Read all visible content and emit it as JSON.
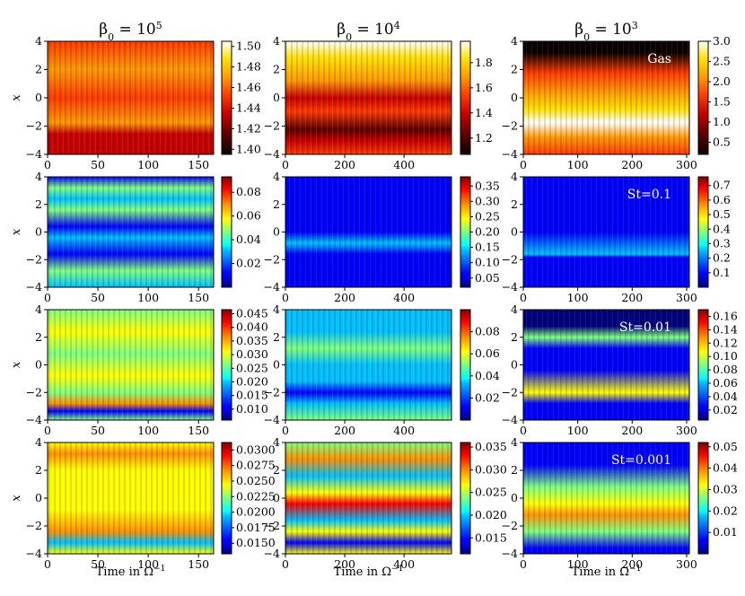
{
  "chart_data": {
    "type": "heatmap",
    "description_rows": [
      "Gas",
      "St=0.1",
      "St=0.01",
      "St=0.001"
    ],
    "columns": [
      {
        "title_base": "β",
        "title_sub": "0",
        "title_rest": " = 10",
        "title_sup": "5",
        "xlim": [
          0,
          165
        ],
        "xticks": [
          0,
          50,
          100,
          150
        ]
      },
      {
        "title_base": "β",
        "title_sub": "0",
        "title_rest": " = 10",
        "title_sup": "4",
        "xlim": [
          0,
          560
        ],
        "xticks": [
          0,
          200,
          400
        ]
      },
      {
        "title_base": "β",
        "title_sub": "0",
        "title_rest": " = 10",
        "title_sup": "3",
        "xlim": [
          0,
          305
        ],
        "xticks": [
          0,
          100,
          200,
          300
        ]
      }
    ],
    "ylim": [
      -4,
      4
    ],
    "yticks": [
      -4,
      -2,
      0,
      2,
      4
    ],
    "ylabel": "x",
    "xlabel_base": "Time in Ω",
    "xlabel_sup": "−1",
    "panels": [
      [
        {
          "cmap": "hot",
          "clim": [
            1.395,
            1.505
          ],
          "ticks": [
            "1.40",
            "1.42",
            "1.44",
            "1.46",
            "1.48",
            "1.50"
          ],
          "annotation": ""
        },
        {
          "cmap": "hot",
          "clim": [
            1.07,
            1.97
          ],
          "ticks": [
            "1.2",
            "1.4",
            "1.6",
            "1.8"
          ],
          "annotation": ""
        },
        {
          "cmap": "hot",
          "clim": [
            0.2,
            3.0
          ],
          "ticks": [
            "0.5",
            "1.0",
            "1.5",
            "2.0",
            "2.5",
            "3.0"
          ],
          "annotation": "Gas"
        }
      ],
      [
        {
          "cmap": "jet",
          "clim": [
            0.0,
            0.093
          ],
          "ticks": [
            "0.02",
            "0.04",
            "0.06",
            "0.08"
          ],
          "annotation": ""
        },
        {
          "cmap": "jet",
          "clim": [
            0.02,
            0.38
          ],
          "ticks": [
            "0.05",
            "0.10",
            "0.15",
            "0.20",
            "0.25",
            "0.30",
            "0.35"
          ],
          "annotation": ""
        },
        {
          "cmap": "jet",
          "clim": [
            0.0,
            0.76
          ],
          "ticks": [
            "0.1",
            "0.2",
            "0.3",
            "0.4",
            "0.5",
            "0.6",
            "0.7"
          ],
          "annotation": "St=0.1"
        }
      ],
      [
        {
          "cmap": "jet",
          "clim": [
            0.006,
            0.0465
          ],
          "ticks": [
            "0.010",
            "0.015",
            "0.020",
            "0.025",
            "0.030",
            "0.035",
            "0.040",
            "0.045"
          ],
          "annotation": ""
        },
        {
          "cmap": "jet",
          "clim": [
            0.0,
            0.1
          ],
          "ticks": [
            "0.02",
            "0.04",
            "0.06",
            "0.08"
          ],
          "annotation": ""
        },
        {
          "cmap": "jet",
          "clim": [
            0.005,
            0.17
          ],
          "ticks": [
            "0.02",
            "0.04",
            "0.06",
            "0.08",
            "0.10",
            "0.12",
            "0.14",
            "0.16"
          ],
          "annotation": "St=0.01"
        }
      ],
      [
        {
          "cmap": "jet",
          "clim": [
            0.0133,
            0.0312
          ],
          "ticks": [
            "0.0150",
            "0.0175",
            "0.0200",
            "0.0225",
            "0.0250",
            "0.0275",
            "0.0300"
          ],
          "annotation": ""
        },
        {
          "cmap": "jet",
          "clim": [
            0.0115,
            0.036
          ],
          "ticks": [
            "0.015",
            "0.020",
            "0.025",
            "0.030",
            "0.035"
          ],
          "annotation": ""
        },
        {
          "cmap": "jet",
          "clim": [
            0.0,
            0.052
          ],
          "ticks": [
            "0.01",
            "0.02",
            "0.03",
            "0.04",
            "0.05"
          ],
          "annotation": "St=0.001"
        }
      ]
    ]
  }
}
